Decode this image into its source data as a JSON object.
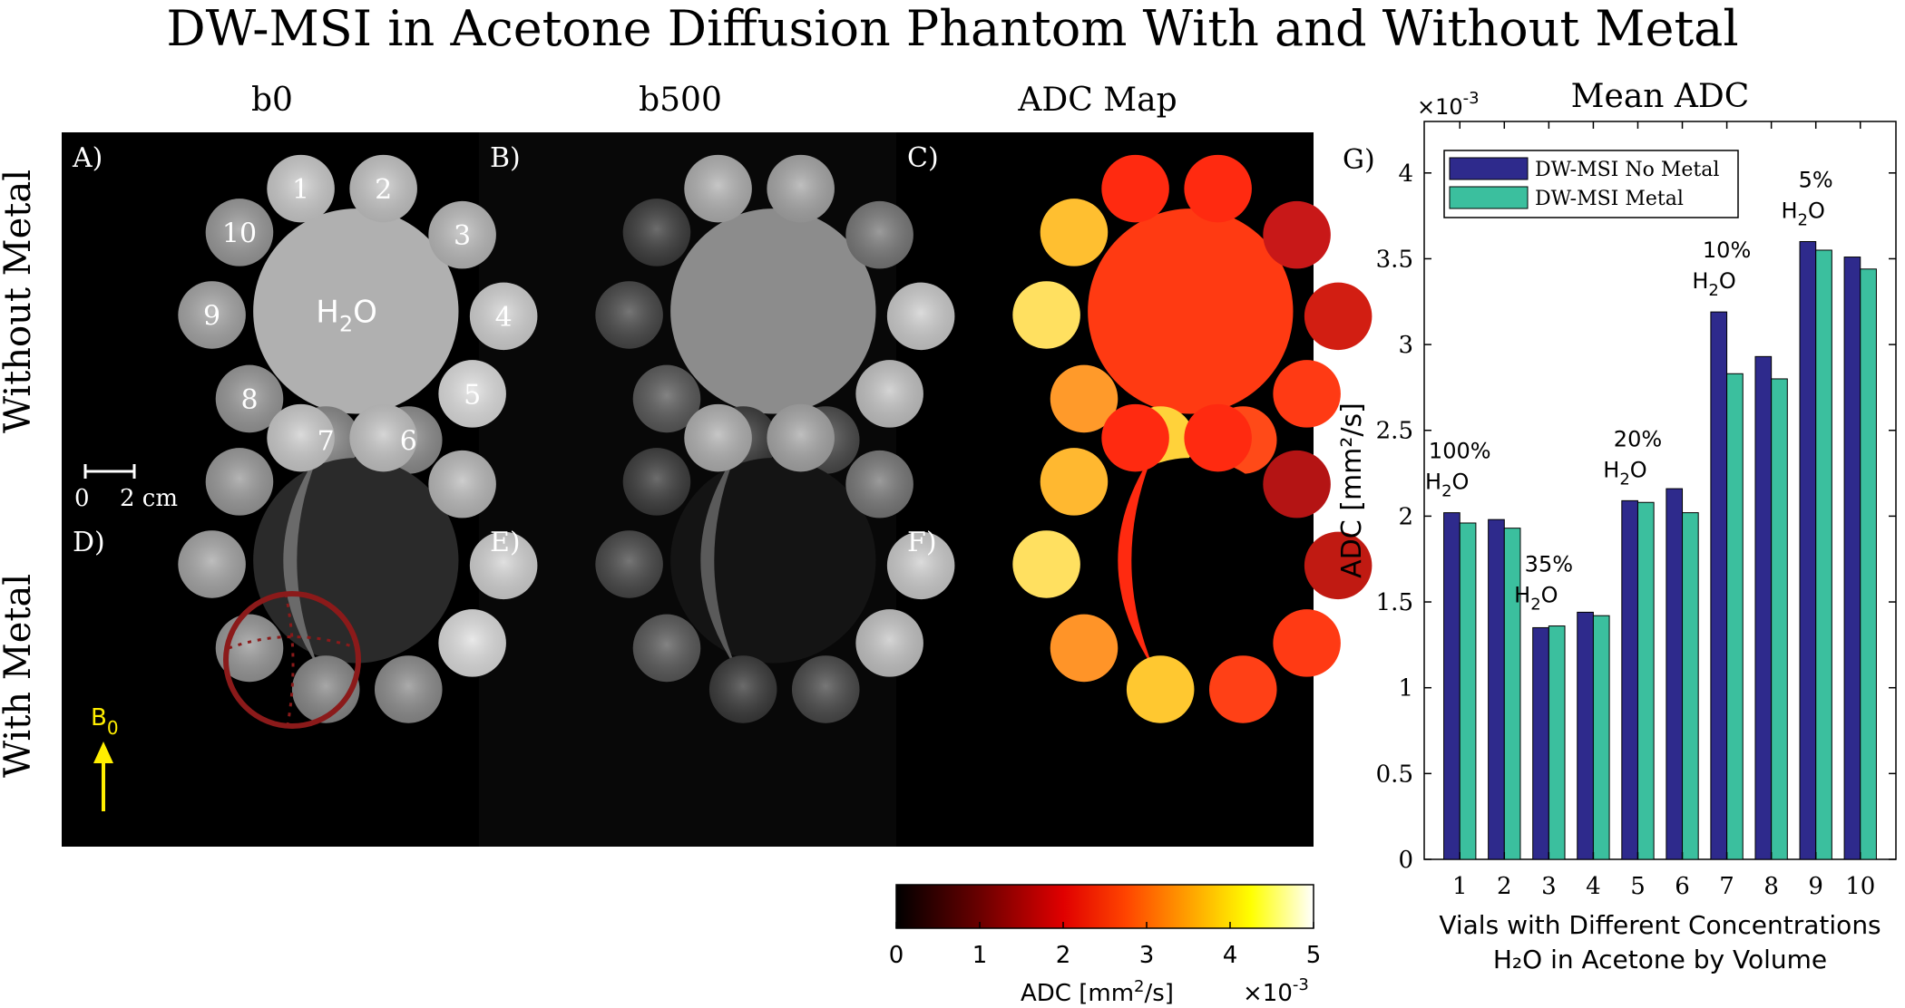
{
  "title": "DW-MSI in Acetone Diffusion Phantom With and Without Metal",
  "columns": [
    "b0",
    "b500",
    "ADC Map"
  ],
  "rows": [
    "Without Metal",
    "With Metal"
  ],
  "panels": {
    "A": "A)",
    "B": "B)",
    "C": "C)",
    "D": "D)",
    "E": "E)",
    "F": "F)",
    "G": "G)"
  },
  "vial_labels": [
    "1",
    "2",
    "3",
    "4",
    "5",
    "6",
    "7",
    "8",
    "9",
    "10"
  ],
  "center_label": "H",
  "center_sub": "2",
  "center_tail": "O",
  "scale_bar": {
    "start": "0",
    "end": "2 cm"
  },
  "b0_label": "B",
  "b0_sub": "0",
  "colorbar": {
    "ticks": [
      "0",
      "1",
      "2",
      "3",
      "4",
      "5"
    ],
    "label": "ADC [mm",
    "label_sup": "2",
    "label_tail": "/s]",
    "multiplier": "×10",
    "multiplier_exp": "-3"
  },
  "colors": {
    "no_metal": "#2e2a8c",
    "metal": "#3bbf9e",
    "circle": "#8b1a1a",
    "arrow": "#ffee00"
  },
  "chart_data": {
    "type": "bar",
    "title": "Mean ADC",
    "xlabel": "Vials with Different Concentrations",
    "xlabel2": "H₂O in Acetone by Volume",
    "ylabel": "ADC [mm²/s]",
    "y_multiplier": "×10",
    "y_multiplier_exp": "-3",
    "categories": [
      "1",
      "2",
      "3",
      "4",
      "5",
      "6",
      "7",
      "8",
      "9",
      "10"
    ],
    "yticks": [
      "0",
      "0.5",
      "1",
      "1.5",
      "2",
      "2.5",
      "3",
      "3.5",
      "4"
    ],
    "ylim": [
      0,
      4.3
    ],
    "series": [
      {
        "name": "DW-MSI No Metal",
        "values": [
          2.02,
          1.98,
          1.35,
          1.44,
          2.09,
          2.16,
          3.19,
          2.93,
          3.6,
          3.51
        ]
      },
      {
        "name": "DW-MSI Metal",
        "values": [
          1.96,
          1.93,
          1.36,
          1.42,
          2.08,
          2.02,
          2.83,
          2.8,
          3.55,
          3.44
        ]
      }
    ],
    "annotations": [
      {
        "top": "100%",
        "bottom": "H",
        "sub": "2",
        "tail": "O"
      },
      {
        "top": "35%",
        "bottom": "H",
        "sub": "2",
        "tail": "O"
      },
      {
        "top": "20%",
        "bottom": "H",
        "sub": "2",
        "tail": "O"
      },
      {
        "top": "10%",
        "bottom": "H",
        "sub": "2",
        "tail": "O"
      },
      {
        "top": "5%",
        "bottom": "H",
        "sub": "2",
        "tail": "O"
      }
    ],
    "legend_position": "top-left",
    "grid": false
  }
}
